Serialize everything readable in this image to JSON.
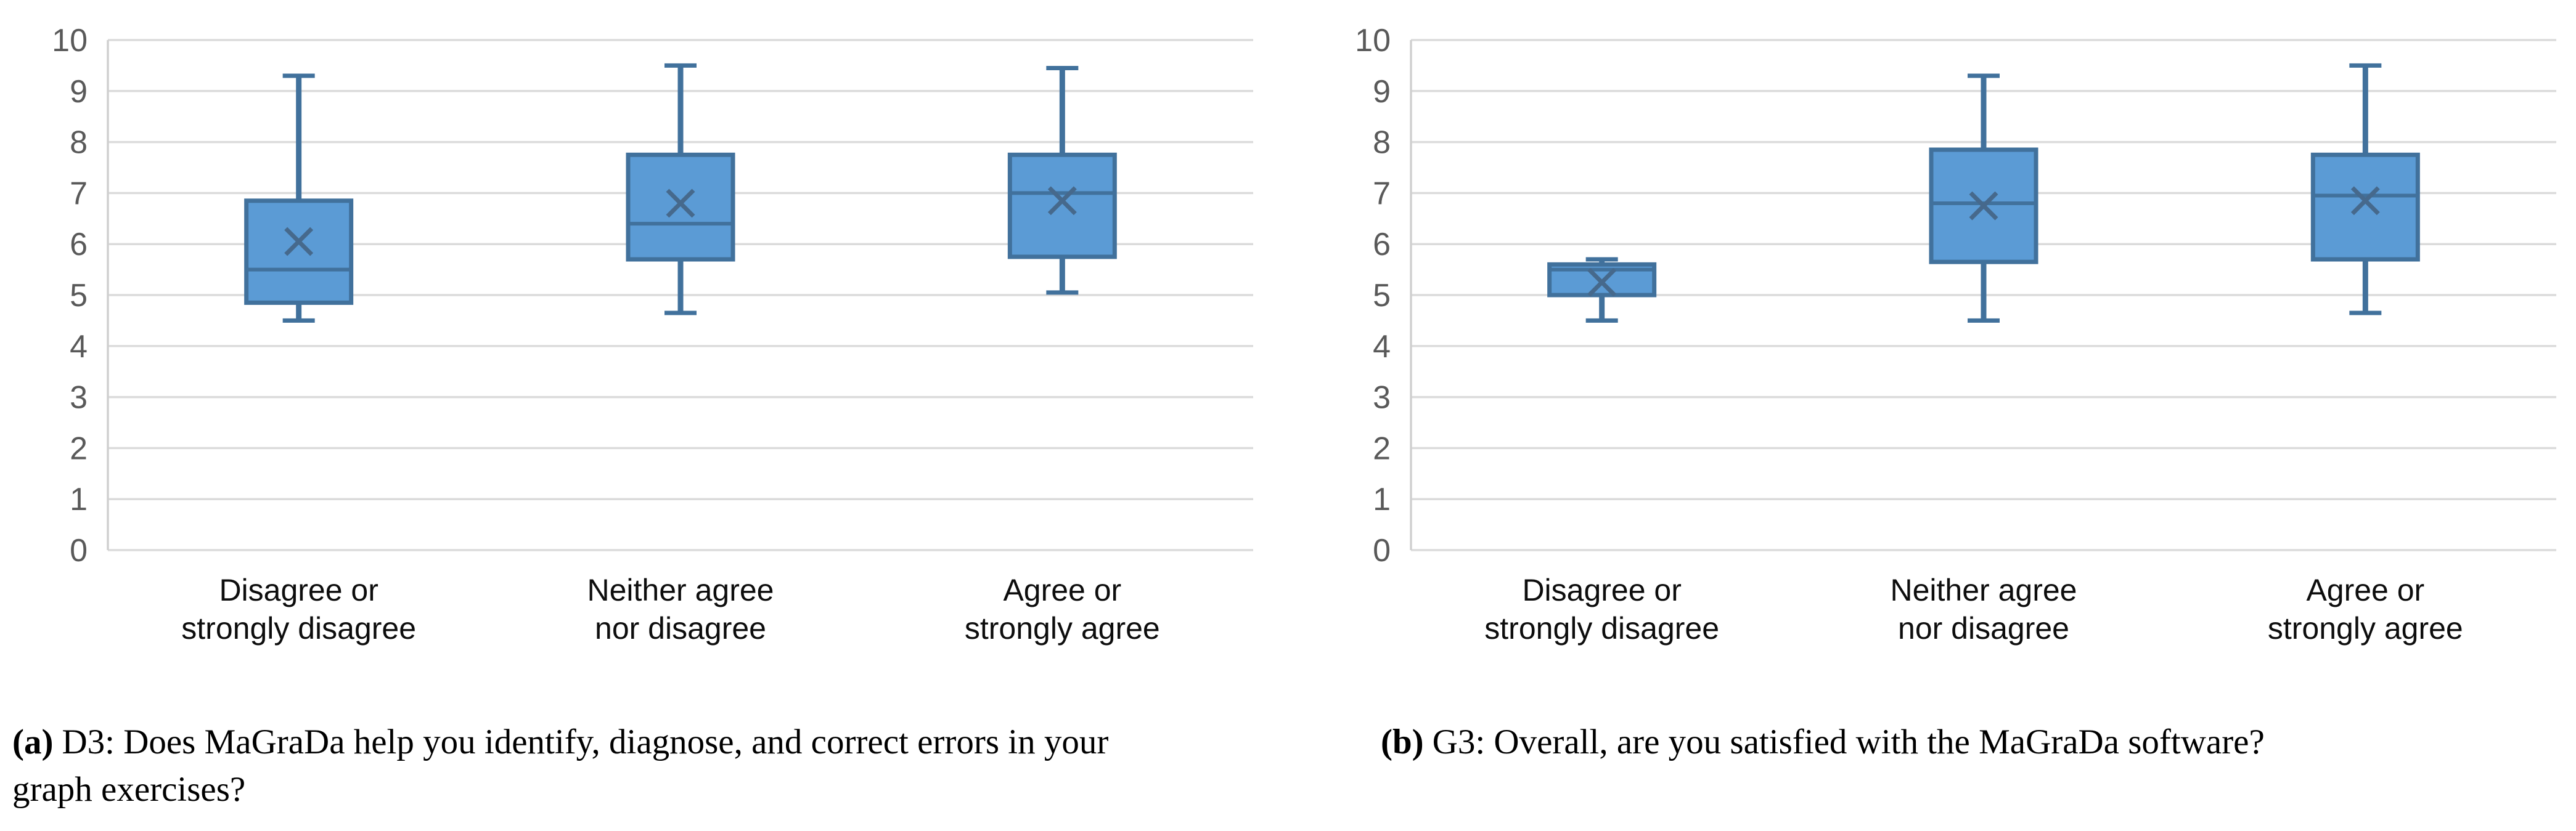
{
  "colors": {
    "box_fill": "#5B9BD5",
    "box_border": "#41719C",
    "median_line": "#41719C",
    "whisker": "#41719C",
    "mean_marker": "#46698C",
    "gridline": "#DBDBDB",
    "axis_line": "#D0D0D0",
    "tick_label": "#595959",
    "category_label": "#0D0D0D"
  },
  "chart_data": [
    {
      "type": "boxplot",
      "panel": "a",
      "panel_label": "(a)",
      "caption": "D3: Does MaGraDa help you identify, diagnose, and correct errors in your graph exercises?",
      "ylim": [
        0,
        10
      ],
      "yticks": [
        0,
        1,
        2,
        3,
        4,
        5,
        6,
        7,
        8,
        9,
        10
      ],
      "grid": true,
      "legend": "none",
      "categories": [
        [
          "Disagree or",
          "strongly disagree"
        ],
        [
          "Neither agree",
          "nor disagree"
        ],
        [
          "Agree or",
          "strongly agree"
        ]
      ],
      "series": [
        {
          "category": "Disagree or strongly disagree",
          "min": 4.5,
          "q1": 4.85,
          "median": 5.5,
          "q3": 6.85,
          "max": 9.3,
          "mean": 6.05
        },
        {
          "category": "Neither agree nor disagree",
          "min": 4.65,
          "q1": 5.7,
          "median": 6.4,
          "q3": 7.75,
          "max": 9.5,
          "mean": 6.8
        },
        {
          "category": "Agree or strongly agree",
          "min": 5.05,
          "q1": 5.75,
          "median": 7.0,
          "q3": 7.75,
          "max": 9.45,
          "mean": 6.85
        }
      ]
    },
    {
      "type": "boxplot",
      "panel": "b",
      "panel_label": "(b)",
      "caption": "G3: Overall, are you satisfied with the MaGraDa software?",
      "ylim": [
        0,
        10
      ],
      "yticks": [
        0,
        1,
        2,
        3,
        4,
        5,
        6,
        7,
        8,
        9,
        10
      ],
      "grid": true,
      "legend": "none",
      "categories": [
        [
          "Disagree or",
          "strongly disagree"
        ],
        [
          "Neither agree",
          "nor disagree"
        ],
        [
          "Agree or",
          "strongly agree"
        ]
      ],
      "series": [
        {
          "category": "Disagree or strongly disagree",
          "min": 4.5,
          "q1": 5.0,
          "median": 5.5,
          "q3": 5.6,
          "max": 5.7,
          "mean": 5.25
        },
        {
          "category": "Neither agree nor disagree",
          "min": 4.5,
          "q1": 5.65,
          "median": 6.8,
          "q3": 7.85,
          "max": 9.3,
          "mean": 6.75
        },
        {
          "category": "Agree or strongly agree",
          "min": 4.65,
          "q1": 5.7,
          "median": 6.95,
          "q3": 7.75,
          "max": 9.5,
          "mean": 6.85
        }
      ]
    }
  ]
}
